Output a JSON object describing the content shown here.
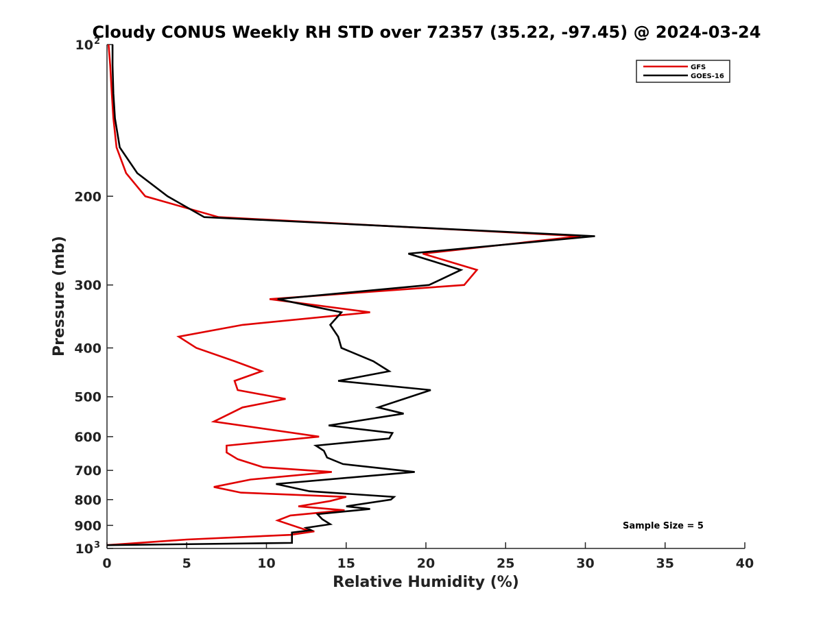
{
  "chart_data": {
    "type": "line",
    "title": "Cloudy CONUS Weekly RH STD over 72357 (35.22, -97.45) @ 2024-03-24",
    "xlabel": "Relative Humidity (%)",
    "ylabel": "Pressure (mb)",
    "xlim": [
      0,
      40
    ],
    "ylim": [
      100,
      1000
    ],
    "y_scale": "log",
    "y_reversed": true,
    "grid": false,
    "legend_position": "top-right",
    "annotation": "Sample Size = 5",
    "x_ticks": [
      {
        "value": 0,
        "label": "0"
      },
      {
        "value": 5,
        "label": "5"
      },
      {
        "value": 10,
        "label": "10"
      },
      {
        "value": 15,
        "label": "15"
      },
      {
        "value": 20,
        "label": "20"
      },
      {
        "value": 25,
        "label": "25"
      },
      {
        "value": 30,
        "label": "30"
      },
      {
        "value": 35,
        "label": "35"
      },
      {
        "value": 40,
        "label": "40"
      }
    ],
    "y_ticks": [
      {
        "value": 100,
        "label": "10",
        "exp": "2"
      },
      {
        "value": 200,
        "label": "200"
      },
      {
        "value": 300,
        "label": "300"
      },
      {
        "value": 400,
        "label": "400"
      },
      {
        "value": 500,
        "label": "500"
      },
      {
        "value": 600,
        "label": "600"
      },
      {
        "value": 700,
        "label": "700"
      },
      {
        "value": 800,
        "label": "800"
      },
      {
        "value": 900,
        "label": "900"
      },
      {
        "value": 1000,
        "label": "10",
        "exp": "3"
      }
    ],
    "series": [
      {
        "name": "GFS",
        "color": "#e00000",
        "points": [
          {
            "x": 0.1,
            "y": 100
          },
          {
            "x": 0.2,
            "y": 110
          },
          {
            "x": 0.3,
            "y": 125
          },
          {
            "x": 0.4,
            "y": 140
          },
          {
            "x": 0.6,
            "y": 160
          },
          {
            "x": 1.2,
            "y": 180
          },
          {
            "x": 2.4,
            "y": 200
          },
          {
            "x": 7.0,
            "y": 220
          },
          {
            "x": 29.7,
            "y": 240
          },
          {
            "x": 19.8,
            "y": 260
          },
          {
            "x": 23.2,
            "y": 280
          },
          {
            "x": 22.4,
            "y": 300
          },
          {
            "x": 10.2,
            "y": 320
          },
          {
            "x": 16.5,
            "y": 340
          },
          {
            "x": 8.5,
            "y": 360
          },
          {
            "x": 4.5,
            "y": 380
          },
          {
            "x": 5.6,
            "y": 400
          },
          {
            "x": 8.0,
            "y": 425
          },
          {
            "x": 9.7,
            "y": 445
          },
          {
            "x": 8.0,
            "y": 465
          },
          {
            "x": 8.2,
            "y": 485
          },
          {
            "x": 11.2,
            "y": 505
          },
          {
            "x": 8.5,
            "y": 525
          },
          {
            "x": 6.7,
            "y": 560
          },
          {
            "x": 13.3,
            "y": 600
          },
          {
            "x": 7.5,
            "y": 625
          },
          {
            "x": 7.5,
            "y": 645
          },
          {
            "x": 8.2,
            "y": 665
          },
          {
            "x": 9.8,
            "y": 690
          },
          {
            "x": 14.1,
            "y": 705
          },
          {
            "x": 9.0,
            "y": 730
          },
          {
            "x": 6.7,
            "y": 755
          },
          {
            "x": 8.4,
            "y": 775
          },
          {
            "x": 15.0,
            "y": 790
          },
          {
            "x": 14.0,
            "y": 805
          },
          {
            "x": 12.0,
            "y": 825
          },
          {
            "x": 14.9,
            "y": 840
          },
          {
            "x": 11.5,
            "y": 860
          },
          {
            "x": 10.7,
            "y": 880
          },
          {
            "x": 12.3,
            "y": 915
          },
          {
            "x": 13.0,
            "y": 925
          },
          {
            "x": 11.5,
            "y": 940
          },
          {
            "x": 5.0,
            "y": 960
          },
          {
            "x": 0,
            "y": 985
          }
        ]
      },
      {
        "name": "GOES-16",
        "color": "#000000",
        "points": [
          {
            "x": 0.35,
            "y": 100
          },
          {
            "x": 0.35,
            "y": 110
          },
          {
            "x": 0.4,
            "y": 125
          },
          {
            "x": 0.5,
            "y": 140
          },
          {
            "x": 0.8,
            "y": 160
          },
          {
            "x": 1.9,
            "y": 180
          },
          {
            "x": 3.8,
            "y": 200
          },
          {
            "x": 6.1,
            "y": 220
          },
          {
            "x": 30.6,
            "y": 240
          },
          {
            "x": 18.9,
            "y": 260
          },
          {
            "x": 22.2,
            "y": 280
          },
          {
            "x": 20.2,
            "y": 300
          },
          {
            "x": 10.7,
            "y": 320
          },
          {
            "x": 14.7,
            "y": 340
          },
          {
            "x": 14.0,
            "y": 360
          },
          {
            "x": 14.5,
            "y": 380
          },
          {
            "x": 14.7,
            "y": 400
          },
          {
            "x": 16.7,
            "y": 425
          },
          {
            "x": 17.7,
            "y": 445
          },
          {
            "x": 14.5,
            "y": 465
          },
          {
            "x": 20.3,
            "y": 485
          },
          {
            "x": 17.0,
            "y": 525
          },
          {
            "x": 18.6,
            "y": 540
          },
          {
            "x": 13.9,
            "y": 570
          },
          {
            "x": 17.9,
            "y": 590
          },
          {
            "x": 17.7,
            "y": 605
          },
          {
            "x": 13.1,
            "y": 625
          },
          {
            "x": 13.6,
            "y": 640
          },
          {
            "x": 13.8,
            "y": 660
          },
          {
            "x": 14.8,
            "y": 680
          },
          {
            "x": 19.3,
            "y": 705
          },
          {
            "x": 10.6,
            "y": 745
          },
          {
            "x": 12.7,
            "y": 770
          },
          {
            "x": 18.0,
            "y": 790
          },
          {
            "x": 17.8,
            "y": 800
          },
          {
            "x": 15.0,
            "y": 825
          },
          {
            "x": 16.5,
            "y": 835
          },
          {
            "x": 13.2,
            "y": 855
          },
          {
            "x": 13.5,
            "y": 875
          },
          {
            "x": 14.0,
            "y": 895
          },
          {
            "x": 12.5,
            "y": 910
          },
          {
            "x": 12.8,
            "y": 920
          },
          {
            "x": 11.6,
            "y": 930
          },
          {
            "x": 11.6,
            "y": 975
          },
          {
            "x": 0,
            "y": 985
          }
        ]
      }
    ]
  }
}
